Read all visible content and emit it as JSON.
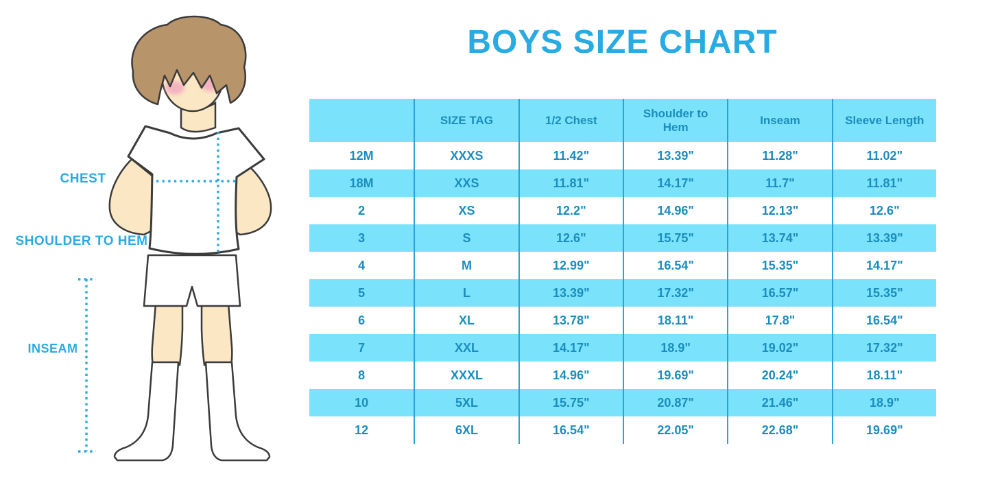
{
  "chart_data": {
    "type": "table",
    "title": "BOYS SIZE CHART",
    "columns": [
      "",
      "SIZE TAG",
      "1/2 Chest",
      "Shoulder to Hem",
      "Inseam",
      "Sleeve Length"
    ],
    "rows": [
      [
        "12M",
        "XXXS",
        "11.42\"",
        "13.39\"",
        "11.28\"",
        "11.02\""
      ],
      [
        "18M",
        "XXS",
        "11.81\"",
        "14.17\"",
        "11.7\"",
        "11.81\""
      ],
      [
        "2",
        "XS",
        "12.2\"",
        "14.96\"",
        "12.13\"",
        "12.6\""
      ],
      [
        "3",
        "S",
        "12.6\"",
        "15.75\"",
        "13.74\"",
        "13.39\""
      ],
      [
        "4",
        "M",
        "12.99\"",
        "16.54\"",
        "15.35\"",
        "14.17\""
      ],
      [
        "5",
        "L",
        "13.39\"",
        "17.32\"",
        "16.57\"",
        "15.35\""
      ],
      [
        "6",
        "XL",
        "13.78\"",
        "18.11\"",
        "17.8\"",
        "16.54\""
      ],
      [
        "7",
        "XXL",
        "14.17\"",
        "18.9\"",
        "19.02\"",
        "17.32\""
      ],
      [
        "8",
        "XXXL",
        "14.96\"",
        "19.69\"",
        "20.24\"",
        "18.11\""
      ],
      [
        "10",
        "5XL",
        "15.75\"",
        "20.87\"",
        "21.46\"",
        "18.9\""
      ],
      [
        "12",
        "6XL",
        "16.54\"",
        "22.05\"",
        "22.68\"",
        "19.69\""
      ]
    ],
    "layout": {
      "row_striping": "first data row white, then alternating cyan/white",
      "grid": "vertical separators only, no horizontal lines"
    }
  },
  "figure": {
    "labels": {
      "chest": "CHEST",
      "shoulder_to_hem": "SHOULDER TO HEM",
      "inseam": "INSEAM"
    }
  },
  "colors": {
    "title_blue": "#29ABE2",
    "table_text_blue": "#1B8DBD",
    "row_cyan": "#7AE2FB",
    "column_line_blue": "#2AA4D6",
    "dotted_line_blue": "#29ABE2",
    "skin": "#FBE7C3",
    "hair_brown": "#B8946A",
    "cheek_pink": "#F2A7BF",
    "outline": "#3B3B3B"
  }
}
